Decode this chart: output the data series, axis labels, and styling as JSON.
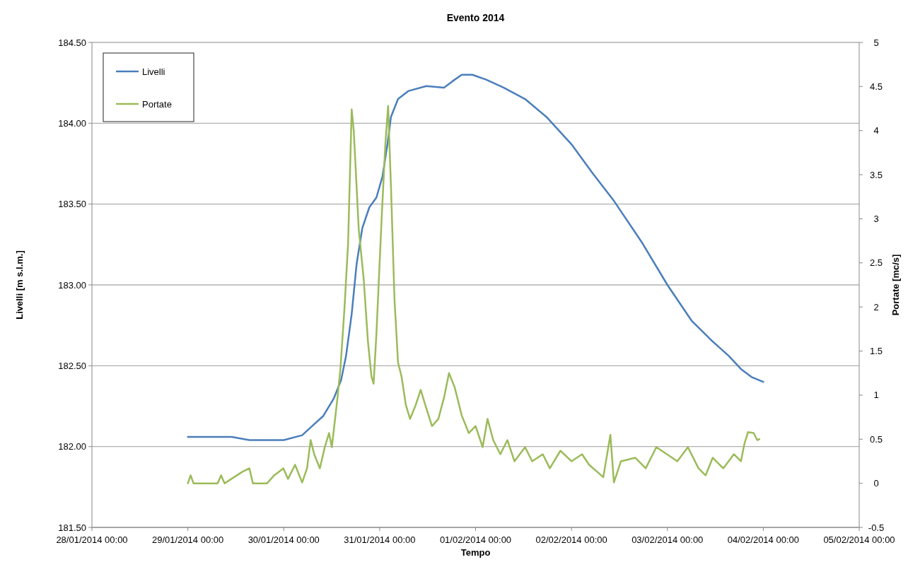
{
  "chart_data": {
    "type": "line",
    "title": "Evento 2014",
    "xlabel": "Tempo",
    "ylabel": "Livelli [m s.l.m.]",
    "y2label": "Portate [mc/s]",
    "xlim": [
      "2014-01-28T00:00",
      "2014-02-05T00:00"
    ],
    "xticks": [
      {
        "value": "2014-01-28T00:00",
        "label": "28/01/2014 00:00"
      },
      {
        "value": "2014-01-29T00:00",
        "label": "29/01/2014 00:00"
      },
      {
        "value": "2014-01-30T00:00",
        "label": "30/01/2014 00:00"
      },
      {
        "value": "2014-01-31T00:00",
        "label": "31/01/2014 00:00"
      },
      {
        "value": "2014-02-01T00:00",
        "label": "01/02/2014 00:00"
      },
      {
        "value": "2014-02-02T00:00",
        "label": "02/02/2014 00:00"
      },
      {
        "value": "2014-02-03T00:00",
        "label": "03/02/2014 00:00"
      },
      {
        "value": "2014-02-04T00:00",
        "label": "04/02/2014 00:00"
      },
      {
        "value": "2014-02-05T00:00",
        "label": "05/02/2014 00:00"
      }
    ],
    "ylim": [
      181.5,
      184.5
    ],
    "yticks": [
      {
        "value": 181.5,
        "label": "181.50"
      },
      {
        "value": 182,
        "label": "182.00"
      },
      {
        "value": 182.5,
        "label": "182.50"
      },
      {
        "value": 183,
        "label": "183.00"
      },
      {
        "value": 183.5,
        "label": "183.50"
      },
      {
        "value": 184,
        "label": "184.00"
      },
      {
        "value": 184.5,
        "label": "184.50"
      }
    ],
    "y2lim": [
      -0.5,
      5
    ],
    "y2ticks": [
      -0.5,
      0,
      0.5,
      1,
      1.5,
      2,
      2.5,
      3,
      3.5,
      4,
      4.5,
      5
    ],
    "grid": "y",
    "legend": "top left",
    "marker": "none",
    "line_style": "solid",
    "series": [
      {
        "name": "Livelli",
        "color": "#4a7ebb",
        "x": [
          "2014-01-29T00:00",
          "2014-01-29T11:00",
          "2014-01-29T15:24",
          "2014-01-30T00:00",
          "2014-01-30T04:36",
          "2014-01-30T07:15",
          "2014-01-30T09:55",
          "2014-01-30T12:34",
          "2014-01-30T14:20",
          "2014-01-30T15:35",
          "2014-01-30T17:00",
          "2014-01-30T18:14",
          "2014-01-30T19:39",
          "2014-01-30T21:25",
          "2014-01-30T23:11",
          "2014-01-31T00:42",
          "2014-01-31T01:57",
          "2014-01-31T02:50",
          "2014-01-31T04:36",
          "2014-01-31T07:15",
          "2014-01-31T11:41",
          "2014-01-31T16:06",
          "2014-01-31T18:14",
          "2014-01-31T20:32",
          "2014-01-31T23:11",
          "2014-02-01T02:39",
          "2014-02-01T07:05",
          "2014-02-01T12:23",
          "2014-02-01T17:42",
          "2014-02-02T00:00",
          "2014-02-02T05:19",
          "2014-02-02T10:37",
          "2014-02-02T17:42",
          "2014-02-03T00:00",
          "2014-02-03T06:01",
          "2014-02-03T11:20",
          "2014-02-03T15:24",
          "2014-02-03T18:24",
          "2014-02-03T21:04",
          "2014-02-04T00:00"
        ],
        "values": [
          182.06,
          182.06,
          182.04,
          182.04,
          182.07,
          182.13,
          182.19,
          182.3,
          182.41,
          182.56,
          182.82,
          183.13,
          183.35,
          183.48,
          183.54,
          183.67,
          183.87,
          184.04,
          184.15,
          184.2,
          184.23,
          184.22,
          184.26,
          184.3,
          184.3,
          184.27,
          184.22,
          184.15,
          184.04,
          183.87,
          183.69,
          183.52,
          183.26,
          183.0,
          182.78,
          182.65,
          182.56,
          182.48,
          182.43,
          182.4
        ]
      },
      {
        "name": "Portate",
        "color": "#9bbb59",
        "axis": "y2",
        "x": [
          "2014-01-29T00:00",
          "2014-01-29T00:42",
          "2014-01-29T01:25",
          "2014-01-29T07:26",
          "2014-01-29T08:19",
          "2014-01-29T09:12",
          "2014-01-29T13:38",
          "2014-01-29T15:24",
          "2014-01-29T16:17",
          "2014-01-29T19:49",
          "2014-01-29T21:36",
          "2014-01-29T23:54",
          "2014-01-30T01:04",
          "2014-01-30T02:50",
          "2014-01-30T04:36",
          "2014-01-30T05:50",
          "2014-01-30T06:44",
          "2014-01-30T07:37",
          "2014-01-30T09:02",
          "2014-01-30T10:16",
          "2014-01-30T11:20",
          "2014-01-30T12:02",
          "2014-01-30T13:27",
          "2014-01-30T14:10",
          "2014-01-30T15:13",
          "2014-01-30T16:06",
          "2014-01-30T17:00",
          "2014-01-30T17:31",
          "2014-01-30T18:46",
          "2014-01-30T20:00",
          "2014-01-30T21:04",
          "2014-01-30T21:57",
          "2014-01-30T22:29",
          "2014-01-30T23:11",
          "2014-01-31T00:32",
          "2014-01-31T01:25",
          "2014-01-31T02:07",
          "2014-01-31T02:50",
          "2014-01-31T03:43",
          "2014-01-31T04:36",
          "2014-01-31T05:29",
          "2014-01-31T06:33",
          "2014-01-31T07:37",
          "2014-01-31T09:02",
          "2014-01-31T10:16",
          "2014-01-31T11:41",
          "2014-01-31T13:06",
          "2014-01-31T14:41",
          "2014-01-31T16:06",
          "2014-01-31T17:21",
          "2014-01-31T18:46",
          "2014-01-31T20:32",
          "2014-01-31T22:18",
          "2014-02-01T00:00",
          "2014-02-01T01:46",
          "2014-02-01T03:00",
          "2014-02-01T04:25",
          "2014-02-01T06:12",
          "2014-02-01T07:58",
          "2014-02-01T09:44",
          "2014-02-01T12:23",
          "2014-02-01T14:10",
          "2014-02-01T16:49",
          "2014-02-01T18:35",
          "2014-02-01T21:14",
          "2014-02-02T00:00",
          "2014-02-02T02:39",
          "2014-02-02T04:25",
          "2014-02-02T07:58",
          "2014-02-02T09:44",
          "2014-02-02T10:37",
          "2014-02-02T12:23",
          "2014-02-02T15:56",
          "2014-02-02T18:35",
          "2014-02-02T21:14",
          "2014-02-02T23:54",
          "2014-02-03T02:29",
          "2014-02-03T05:08",
          "2014-02-03T07:47",
          "2014-02-03T09:33",
          "2014-02-03T11:20",
          "2014-02-03T13:59",
          "2014-02-03T16:38",
          "2014-02-03T18:24",
          "2014-02-03T19:17",
          "2014-02-03T20:10",
          "2014-02-03T21:36",
          "2014-02-03T22:29",
          "2014-02-03T23:01"
        ],
        "values": [
          0,
          0.09,
          0,
          0,
          0.09,
          0,
          0.13,
          0.17,
          0,
          0,
          0.09,
          0.17,
          0.05,
          0.21,
          0.01,
          0.17,
          0.49,
          0.33,
          0.17,
          0.41,
          0.57,
          0.41,
          0.97,
          1.29,
          2.0,
          2.72,
          4.24,
          4.0,
          2.88,
          2.32,
          1.61,
          1.21,
          1.13,
          1.69,
          3.04,
          3.84,
          4.28,
          3.36,
          2.08,
          1.37,
          1.21,
          0.89,
          0.73,
          0.89,
          1.06,
          0.85,
          0.65,
          0.73,
          0.97,
          1.25,
          1.09,
          0.77,
          0.57,
          0.65,
          0.41,
          0.73,
          0.49,
          0.33,
          0.49,
          0.25,
          0.41,
          0.25,
          0.33,
          0.17,
          0.37,
          0.25,
          0.33,
          0.21,
          0.07,
          0.55,
          0.01,
          0.25,
          0.29,
          0.17,
          0.41,
          0.33,
          0.25,
          0.41,
          0.17,
          0.09,
          0.29,
          0.17,
          0.33,
          0.25,
          0.45,
          0.58,
          0.57,
          0.49,
          0.5
        ]
      }
    ]
  }
}
